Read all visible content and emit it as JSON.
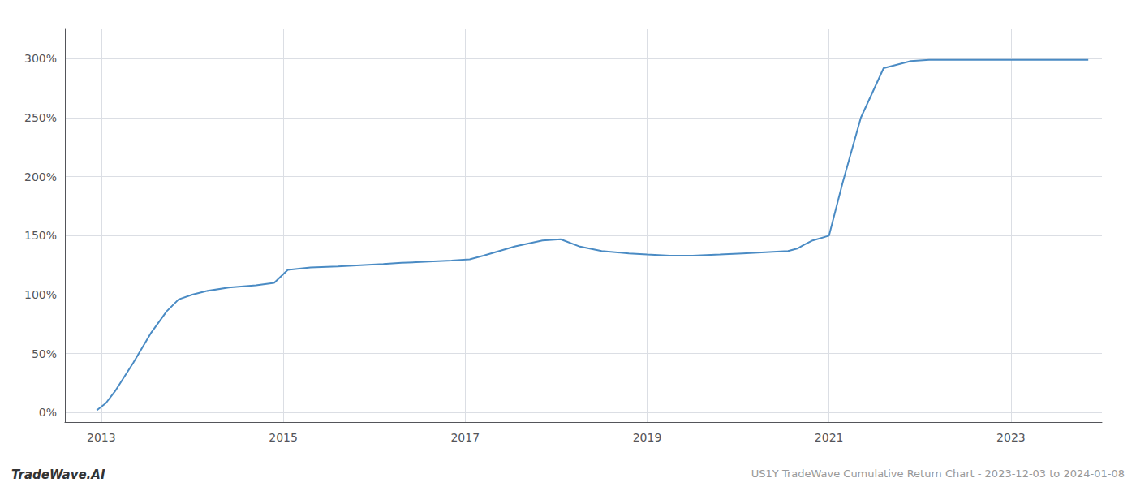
{
  "chart_data": {
    "type": "line",
    "title": "US1Y TradeWave Cumulative Return Chart - 2023-12-03 to 2024-01-08",
    "annotations": [
      "TradeWave.AI"
    ],
    "color": "#4a8bc4",
    "x": [
      2012.95,
      2013.05,
      2013.15,
      2013.35,
      2013.55,
      2013.72,
      2013.85,
      2014.0,
      2014.15,
      2014.4,
      2014.7,
      2014.9,
      2015.05,
      2015.3,
      2015.6,
      2015.85,
      2016.1,
      2016.3,
      2016.6,
      2016.85,
      2017.05,
      2017.2,
      2017.55,
      2017.85,
      2018.05,
      2018.25,
      2018.5,
      2018.8,
      2019.0,
      2019.25,
      2019.5,
      2019.8,
      2020.05,
      2020.3,
      2020.55,
      2020.65,
      2020.72,
      2020.82,
      2021.0,
      2021.15,
      2021.35,
      2021.6,
      2021.9,
      2022.1,
      2022.4,
      2022.7,
      2023.0,
      2023.3,
      2023.6,
      2023.85
    ],
    "values": [
      2,
      8,
      18,
      42,
      68,
      86,
      96,
      100,
      103,
      106,
      108,
      110,
      121,
      123,
      124,
      125,
      126,
      127,
      128,
      129,
      130,
      133,
      141,
      146,
      147,
      141,
      137,
      135,
      134,
      133,
      133,
      134,
      135,
      136,
      137,
      139,
      142,
      146,
      150,
      195,
      250,
      292,
      298,
      299,
      299,
      299,
      299,
      299,
      299,
      299
    ],
    "xlim": [
      2012.6,
      2024.0
    ],
    "ylim": [
      -8,
      325
    ],
    "xticks": [
      2013,
      2015,
      2017,
      2019,
      2021,
      2023
    ],
    "yticks": [
      {
        "value": 0,
        "label": "0%"
      },
      {
        "value": 50,
        "label": "50%"
      },
      {
        "value": 100,
        "label": "100%"
      },
      {
        "value": 150,
        "label": "150%"
      },
      {
        "value": 200,
        "label": "200%"
      },
      {
        "value": 250,
        "label": "250%"
      },
      {
        "value": 300,
        "label": "300%"
      }
    ],
    "grid": true
  }
}
